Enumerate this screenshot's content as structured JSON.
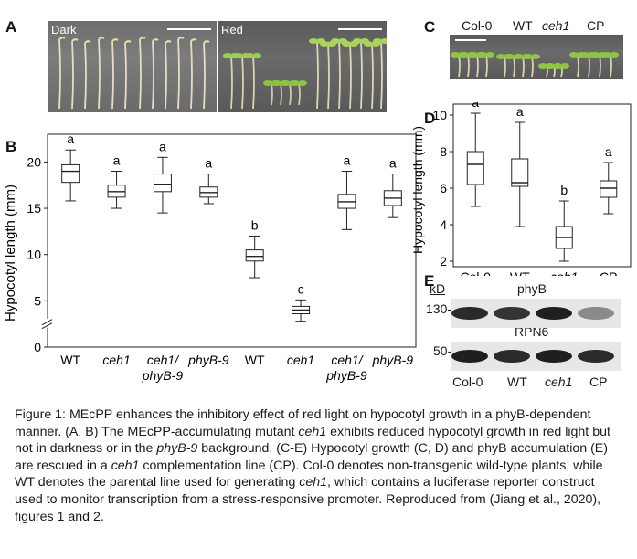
{
  "panels": {
    "A": "A",
    "B": "B",
    "C": "C",
    "D": "D",
    "E": "E"
  },
  "panel_a": {
    "left_label": "Dark",
    "right_label": "Red"
  },
  "panel_c": {
    "labels": [
      "Col-0",
      "WT",
      "ceh1",
      "CP"
    ]
  },
  "panel_e": {
    "unit": "kD",
    "markers": [
      "130-",
      "50-"
    ],
    "proteins": [
      "phyB",
      "RPN6"
    ],
    "lanes": [
      "Col-0",
      "WT",
      "ceh1",
      "CP"
    ],
    "phyB_band_intensity": [
      0.9,
      0.85,
      0.95,
      0.45
    ],
    "rpn6_band_intensity": [
      0.95,
      0.9,
      0.95,
      0.9
    ]
  },
  "chart_data": [
    {
      "type": "box",
      "panel": "B",
      "ylabel": "Hypocotyl length (mm)",
      "yticks": [
        0,
        5,
        10,
        15,
        20
      ],
      "ylim": [
        0,
        23
      ],
      "axis_break": true,
      "categories": [
        "WT",
        "ceh1",
        "ceh1/\nphyB-9",
        "phyB-9",
        "WT",
        "ceh1",
        "ceh1/\nphyB-9",
        "phyB-9"
      ],
      "category_lines": [
        [
          "WT"
        ],
        [
          "ceh1"
        ],
        [
          "ceh1/",
          "phyB-9"
        ],
        [
          "phyB-9"
        ],
        [
          "WT"
        ],
        [
          "ceh1"
        ],
        [
          "ceh1/",
          "phyB-9"
        ],
        [
          "phyB-9"
        ]
      ],
      "italic": [
        false,
        true,
        true,
        true,
        false,
        true,
        true,
        true
      ],
      "letters": [
        "a",
        "a",
        "a",
        "a",
        "b",
        "c",
        "a",
        "a"
      ],
      "boxes": [
        {
          "min": 15.8,
          "q1": 17.8,
          "median": 19.0,
          "q3": 19.7,
          "max": 21.3
        },
        {
          "min": 15.0,
          "q1": 16.2,
          "median": 16.8,
          "q3": 17.5,
          "max": 19.0
        },
        {
          "min": 14.5,
          "q1": 16.8,
          "median": 17.6,
          "q3": 18.7,
          "max": 20.5
        },
        {
          "min": 15.5,
          "q1": 16.2,
          "median": 16.7,
          "q3": 17.3,
          "max": 18.7
        },
        {
          "min": 7.5,
          "q1": 9.3,
          "median": 9.8,
          "q3": 10.5,
          "max": 12.0
        },
        {
          "min": 2.8,
          "q1": 3.6,
          "median": 4.0,
          "q3": 4.4,
          "max": 5.1
        },
        {
          "min": 12.7,
          "q1": 15.0,
          "median": 15.7,
          "q3": 16.5,
          "max": 19.0
        },
        {
          "min": 14.0,
          "q1": 15.3,
          "median": 16.1,
          "q3": 16.9,
          "max": 18.7
        }
      ]
    },
    {
      "type": "box",
      "panel": "D",
      "ylabel": "Hypocotyl length (mm)",
      "yticks": [
        2,
        4,
        6,
        8,
        10
      ],
      "ylim": [
        1.7,
        10.6
      ],
      "categories": [
        "Col-0",
        "WT",
        "ceh1",
        "CP"
      ],
      "letters": [
        "a",
        "a",
        "b",
        "a"
      ],
      "boxes": [
        {
          "min": 5.0,
          "q1": 6.2,
          "median": 7.3,
          "q3": 8.0,
          "max": 10.1
        },
        {
          "min": 3.9,
          "q1": 6.1,
          "median": 6.3,
          "q3": 7.6,
          "max": 9.6
        },
        {
          "min": 2.0,
          "q1": 2.7,
          "median": 3.3,
          "q3": 3.9,
          "max": 5.3
        },
        {
          "min": 4.6,
          "q1": 5.5,
          "median": 6.0,
          "q3": 6.4,
          "max": 7.4
        }
      ]
    }
  ],
  "caption": {
    "figure_label": "Figure 1:",
    "segments": [
      {
        "t": " MEcPP enhances the inhibitory effect of red light on hypocotyl growth in a phyB-dependent manner. (A, B) The MEcPP-accumulating mutant ",
        "i": false
      },
      {
        "t": "ceh1",
        "i": true
      },
      {
        "t": " exhibits re­duced hypocotyl growth in red light but not in darkness or in the ",
        "i": false
      },
      {
        "t": "phyB-9",
        "i": true
      },
      {
        "t": " background. (C-E) Hypocotyl growth (C, D) and phyB accumulation (E) are rescued in a ",
        "i": false
      },
      {
        "t": "ceh1",
        "i": true
      },
      {
        "t": " com­plementation line (CP). Col-0 denotes non-transgenic wild-type plants, while WT de­notes the parental line used for generating ",
        "i": false
      },
      {
        "t": "ceh1",
        "i": true
      },
      {
        "t": ", which contains a luciferase reporter construct used to monitor transcription from a stress-responsive promoter. Reproduced from (Jiang et al., 2020), figures 1 and 2.",
        "i": false
      }
    ]
  }
}
